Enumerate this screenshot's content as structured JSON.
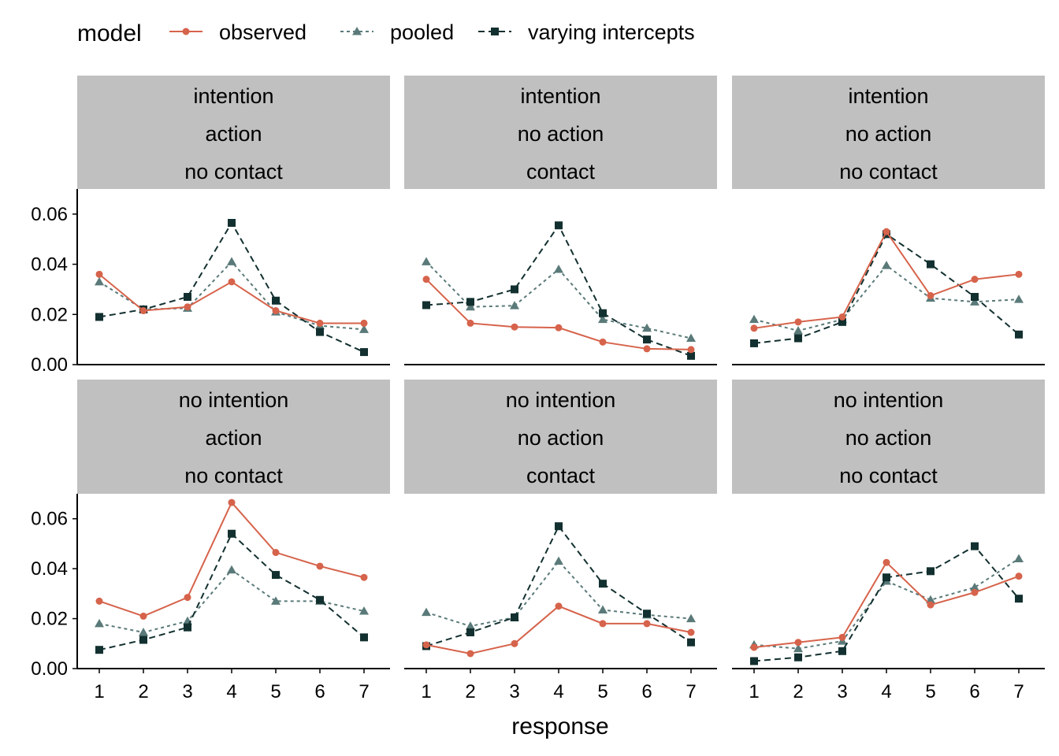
{
  "chart_data": {
    "type": "line",
    "xlabel": "response",
    "ylabel": "",
    "x": [
      1,
      2,
      3,
      4,
      5,
      6,
      7
    ],
    "ylim": [
      0,
      0.07
    ],
    "y_ticks": [
      "0.00",
      "0.02",
      "0.04",
      "0.06"
    ],
    "x_ticks": [
      "1",
      "2",
      "3",
      "4",
      "5",
      "6",
      "7"
    ],
    "legend": {
      "title": "model",
      "position": "top-left",
      "entries": [
        {
          "name": "observed",
          "color": "#d6634b",
          "marker": "circle",
          "line": "solid"
        },
        {
          "name": "pooled",
          "color": "#5a7a79",
          "marker": "triangle",
          "line": "dotted"
        },
        {
          "name": "varying intercepts",
          "color": "#12302f",
          "marker": "square",
          "line": "dashed"
        }
      ]
    },
    "panels": [
      {
        "strip": [
          "intention",
          "action",
          "no contact"
        ],
        "series": [
          {
            "name": "observed",
            "values": [
              0.036,
              0.0215,
              0.023,
              0.033,
              0.0215,
              0.0165,
              0.0165
            ]
          },
          {
            "name": "pooled",
            "values": [
              0.033,
              0.022,
              0.0225,
              0.041,
              0.021,
              0.0155,
              0.014
            ]
          },
          {
            "name": "varying intercepts",
            "values": [
              0.019,
              0.022,
              0.027,
              0.0565,
              0.0255,
              0.013,
              0.005
            ]
          }
        ]
      },
      {
        "strip": [
          "intention",
          "no action",
          "contact"
        ],
        "series": [
          {
            "name": "observed",
            "values": [
              0.034,
              0.0165,
              0.015,
              0.0147,
              0.009,
              0.0063,
              0.006
            ]
          },
          {
            "name": "pooled",
            "values": [
              0.041,
              0.023,
              0.0235,
              0.038,
              0.018,
              0.0145,
              0.0105
            ]
          },
          {
            "name": "varying intercepts",
            "values": [
              0.0237,
              0.025,
              0.03,
              0.0555,
              0.0205,
              0.01,
              0.0035
            ]
          }
        ]
      },
      {
        "strip": [
          "intention",
          "no action",
          "no contact"
        ],
        "series": [
          {
            "name": "observed",
            "values": [
              0.0145,
              0.017,
              0.019,
              0.053,
              0.0275,
              0.034,
              0.036
            ]
          },
          {
            "name": "pooled",
            "values": [
              0.018,
              0.0135,
              0.018,
              0.0395,
              0.0265,
              0.025,
              0.026
            ]
          },
          {
            "name": "varying intercepts",
            "values": [
              0.0085,
              0.0105,
              0.017,
              0.052,
              0.04,
              0.027,
              0.012
            ]
          }
        ]
      },
      {
        "strip": [
          "no intention",
          "action",
          "no contact"
        ],
        "series": [
          {
            "name": "observed",
            "values": [
              0.027,
              0.021,
              0.0285,
              0.0665,
              0.0465,
              0.041,
              0.0365
            ]
          },
          {
            "name": "pooled",
            "values": [
              0.018,
              0.0145,
              0.019,
              0.0395,
              0.027,
              0.027,
              0.023
            ]
          },
          {
            "name": "varying intercepts",
            "values": [
              0.0075,
              0.0115,
              0.0165,
              0.054,
              0.0375,
              0.0275,
              0.0125
            ]
          }
        ]
      },
      {
        "strip": [
          "no intention",
          "no action",
          "contact"
        ],
        "series": [
          {
            "name": "observed",
            "values": [
              0.0095,
              0.006,
              0.01,
              0.025,
              0.018,
              0.018,
              0.0145
            ]
          },
          {
            "name": "pooled",
            "values": [
              0.0225,
              0.017,
              0.0205,
              0.043,
              0.0235,
              0.0215,
              0.02
            ]
          },
          {
            "name": "varying intercepts",
            "values": [
              0.009,
              0.0145,
              0.0205,
              0.057,
              0.034,
              0.022,
              0.0105
            ]
          }
        ]
      },
      {
        "strip": [
          "no intention",
          "no action",
          "no contact"
        ],
        "series": [
          {
            "name": "observed",
            "values": [
              0.0085,
              0.0105,
              0.0125,
              0.0425,
              0.0255,
              0.0305,
              0.037
            ]
          },
          {
            "name": "pooled",
            "values": [
              0.0095,
              0.008,
              0.011,
              0.035,
              0.0275,
              0.0325,
              0.044
            ]
          },
          {
            "name": "varying intercepts",
            "values": [
              0.003,
              0.0045,
              0.007,
              0.0365,
              0.039,
              0.049,
              0.028
            ]
          }
        ]
      }
    ]
  }
}
